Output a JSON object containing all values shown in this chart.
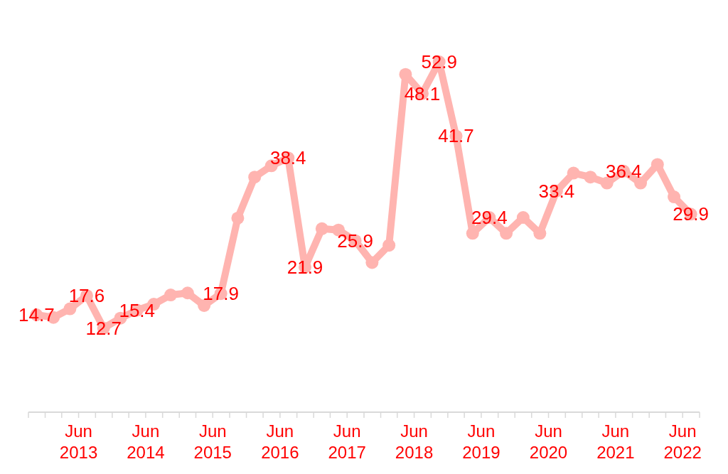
{
  "chart_data": {
    "type": "line",
    "x": [
      "2012-10-15",
      "2013-01-15",
      "2013-04-15",
      "2013-07-15",
      "2013-10-15",
      "2014-01-15",
      "2014-04-15",
      "2014-07-15",
      "2014-10-15",
      "2015-01-15",
      "2015-04-15",
      "2015-07-15",
      "2015-10-15",
      "2016-01-15",
      "2016-04-15",
      "2016-07-15",
      "2016-10-15",
      "2017-01-15",
      "2017-04-15",
      "2017-07-15",
      "2017-10-15",
      "2018-01-15",
      "2018-04-15",
      "2018-07-15",
      "2018-10-15",
      "2019-01-15",
      "2019-04-15",
      "2019-07-15",
      "2019-10-15",
      "2020-01-15",
      "2020-04-15",
      "2020-07-15",
      "2020-10-15",
      "2021-01-15",
      "2021-04-15",
      "2021-07-15",
      "2021-10-15",
      "2022-01-15",
      "2022-04-15",
      "2022-07-15"
    ],
    "series": [
      {
        "color": "#ffb4b0",
        "values": [
          14.7,
          14.3,
          15.6,
          17.6,
          12.7,
          14.2,
          15.4,
          16.3,
          17.7,
          18.0,
          16.1,
          17.9,
          29.3,
          35.5,
          37.2,
          38.4,
          21.9,
          27.7,
          27.5,
          25.9,
          22.6,
          25.2,
          51.0,
          48.1,
          52.9,
          41.7,
          27.0,
          29.4,
          27.0,
          29.4,
          27.0,
          33.4,
          36.1,
          35.5,
          34.6,
          36.4,
          34.6,
          37.4,
          32.5,
          29.9
        ],
        "value_labels": [
          "14.7",
          null,
          null,
          "17.6",
          "12.7",
          null,
          "15.4",
          null,
          null,
          null,
          null,
          "17.9",
          null,
          null,
          null,
          "38.4",
          "21.9",
          null,
          null,
          "25.9",
          null,
          null,
          null,
          "48.1",
          "52.9",
          "41.7",
          null,
          "29.4",
          null,
          null,
          null,
          "33.4",
          null,
          null,
          null,
          "36.4",
          null,
          null,
          null,
          "29.9"
        ]
      }
    ],
    "xlim": [
      "2012-09-01",
      "2022-09-01"
    ],
    "xticks": [
      {
        "value": "2012-09-01",
        "label": null
      },
      {
        "value": "2012-12-01",
        "label": null
      },
      {
        "value": "2013-03-01",
        "label": null
      },
      {
        "value": "2013-06-01",
        "label": "Jun 2013"
      },
      {
        "value": "2013-09-01",
        "label": null
      },
      {
        "value": "2013-12-01",
        "label": null
      },
      {
        "value": "2014-03-01",
        "label": null
      },
      {
        "value": "2014-06-01",
        "label": "Jun 2014"
      },
      {
        "value": "2014-09-01",
        "label": null
      },
      {
        "value": "2014-12-01",
        "label": null
      },
      {
        "value": "2015-03-01",
        "label": null
      },
      {
        "value": "2015-06-01",
        "label": "Jun 2015"
      },
      {
        "value": "2015-09-01",
        "label": null
      },
      {
        "value": "2015-12-01",
        "label": null
      },
      {
        "value": "2016-03-01",
        "label": null
      },
      {
        "value": "2016-06-01",
        "label": "Jun 2016"
      },
      {
        "value": "2016-09-01",
        "label": null
      },
      {
        "value": "2016-12-01",
        "label": null
      },
      {
        "value": "2017-03-01",
        "label": null
      },
      {
        "value": "2017-06-01",
        "label": "Jun 2017"
      },
      {
        "value": "2017-09-01",
        "label": null
      },
      {
        "value": "2017-12-01",
        "label": null
      },
      {
        "value": "2018-03-01",
        "label": null
      },
      {
        "value": "2018-06-01",
        "label": "Jun 2018"
      },
      {
        "value": "2018-09-01",
        "label": null
      },
      {
        "value": "2018-12-01",
        "label": null
      },
      {
        "value": "2019-03-01",
        "label": null
      },
      {
        "value": "2019-06-01",
        "label": "Jun 2019"
      },
      {
        "value": "2019-09-01",
        "label": null
      },
      {
        "value": "2019-12-01",
        "label": null
      },
      {
        "value": "2020-03-01",
        "label": null
      },
      {
        "value": "2020-06-01",
        "label": "Jun 2020"
      },
      {
        "value": "2020-09-01",
        "label": null
      },
      {
        "value": "2020-12-01",
        "label": null
      },
      {
        "value": "2021-03-01",
        "label": null
      },
      {
        "value": "2021-06-01",
        "label": "Jun 2021"
      },
      {
        "value": "2021-09-01",
        "label": null
      },
      {
        "value": "2021-12-01",
        "label": null
      },
      {
        "value": "2022-03-01",
        "label": null
      },
      {
        "value": "2022-06-01",
        "label": "Jun 2022"
      },
      {
        "value": "2022-09-01",
        "label": null
      }
    ],
    "tick_labels": "x",
    "marker": "circle",
    "line_style": "solid"
  }
}
